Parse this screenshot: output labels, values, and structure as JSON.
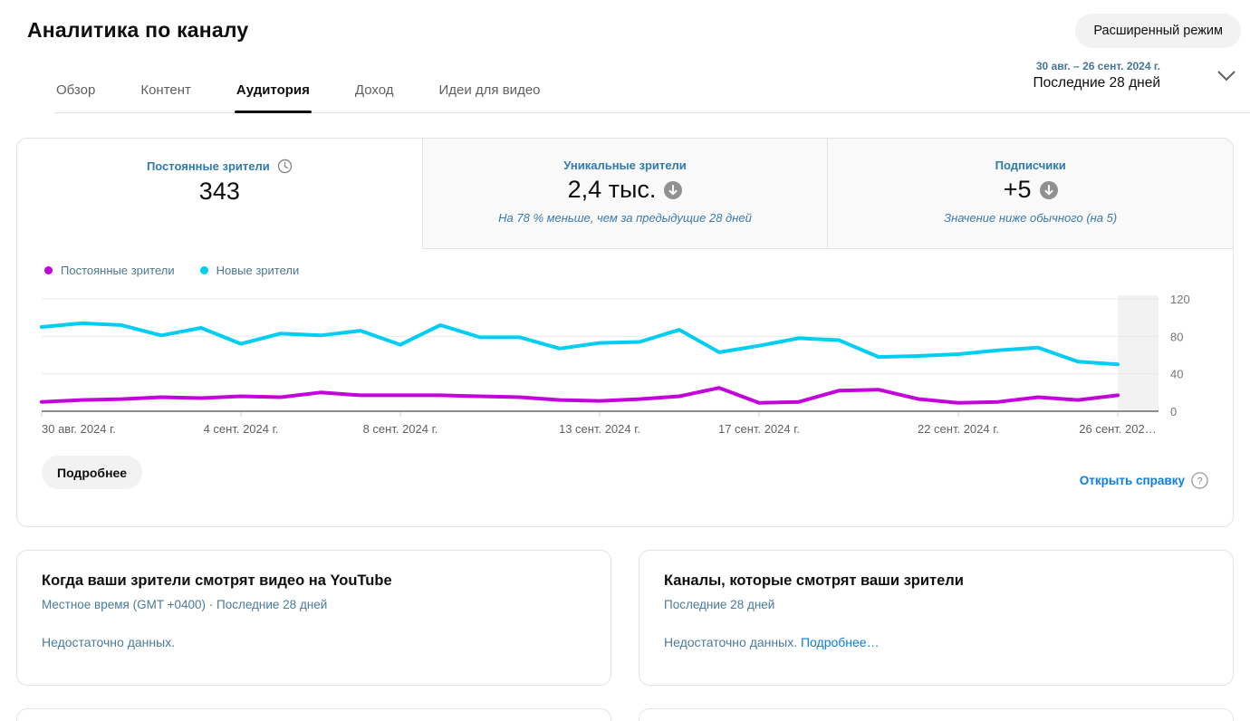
{
  "page": {
    "title": "Аналитика по каналу"
  },
  "header": {
    "advanced_mode_label": "Расширенный режим"
  },
  "tabs": [
    {
      "label": "Обзор",
      "selected": false
    },
    {
      "label": "Контент",
      "selected": false
    },
    {
      "label": "Аудитория",
      "selected": true
    },
    {
      "label": "Доход",
      "selected": false
    },
    {
      "label": "Идеи для видео",
      "selected": false
    }
  ],
  "date_picker": {
    "range": "30 авг. – 26 сент. 2024 г.",
    "preset": "Последние 28 дней"
  },
  "metrics": [
    {
      "label": "Постоянные зрители",
      "value": "343",
      "icon": "clock-icon",
      "note": "",
      "selected": true
    },
    {
      "label": "Уникальные зрители",
      "value": "2,4 тыс.",
      "icon": "arrow-down-circle-icon",
      "note": "На 78 % меньше, чем за предыдущие 28 дней",
      "selected": false
    },
    {
      "label": "Подписчики",
      "value": "+5",
      "icon": "arrow-down-circle-icon",
      "note": "Значение ниже обычного (на 5)",
      "selected": false
    }
  ],
  "legend": [
    {
      "label": "Постоянные зрители"
    },
    {
      "label": "Новые зрители"
    }
  ],
  "chart_data": {
    "type": "line",
    "title": "Постоянные и новые зрители по дням",
    "x_days": 28,
    "x_ticks": [
      {
        "day": 0,
        "label": "30 авг. 2024 г.",
        "anchor": "start"
      },
      {
        "day": 5,
        "label": "4 сент. 2024 г.",
        "anchor": "middle"
      },
      {
        "day": 9,
        "label": "8 сент. 2024 г.",
        "anchor": "middle"
      },
      {
        "day": 14,
        "label": "13 сент. 2024 г.",
        "anchor": "middle"
      },
      {
        "day": 18,
        "label": "17 сент. 2024 г.",
        "anchor": "middle"
      },
      {
        "day": 23,
        "label": "22 сент. 2024 г.",
        "anchor": "middle"
      },
      {
        "day": 27,
        "label": "26 сент. 202…",
        "anchor": "middle"
      }
    ],
    "ylim": [
      0,
      120
    ],
    "yticks": [
      0,
      40,
      80,
      120
    ],
    "grid": true,
    "legend_position": "top-left",
    "partial_data_band_last_interval": true,
    "series": [
      {
        "name": "Постоянные зрители",
        "color": "#c203d9",
        "values": [
          10,
          12,
          13,
          15,
          14,
          16,
          15,
          20,
          17,
          17,
          17,
          16,
          15,
          12,
          11,
          13,
          16,
          25,
          9,
          10,
          22,
          23,
          13,
          9,
          10,
          15,
          12,
          17
        ]
      },
      {
        "name": "Новые зрители",
        "color": "#00cdf2",
        "values": [
          90,
          94,
          92,
          81,
          89,
          72,
          83,
          81,
          86,
          71,
          92,
          79,
          79,
          67,
          73,
          74,
          87,
          63,
          70,
          78,
          76,
          58,
          59,
          61,
          65,
          68,
          53,
          50
        ]
      }
    ]
  },
  "chart_footer": {
    "see_more_label": "Подробнее",
    "help_label": "Открыть справку"
  },
  "cards": [
    {
      "title": "Когда ваши зрители смотрят видео на YouTube",
      "subtitle": "Местное время (GMT +0400) · Последние 28 дней",
      "body": "Недостаточно данных.",
      "link": ""
    },
    {
      "title": "Каналы, которые смотрят ваши зрители",
      "subtitle": "Последние 28 дней",
      "body": "Недостаточно данных.",
      "link": "Подробнее…"
    }
  ],
  "colors": {
    "returning_viewers_line": "#c203d9",
    "new_viewers_line": "#00cdf2",
    "metric_label_blue": "#2e7bad",
    "link_blue": "#0d7de2",
    "subtitle_blue_gray": "#4a7a9b"
  }
}
